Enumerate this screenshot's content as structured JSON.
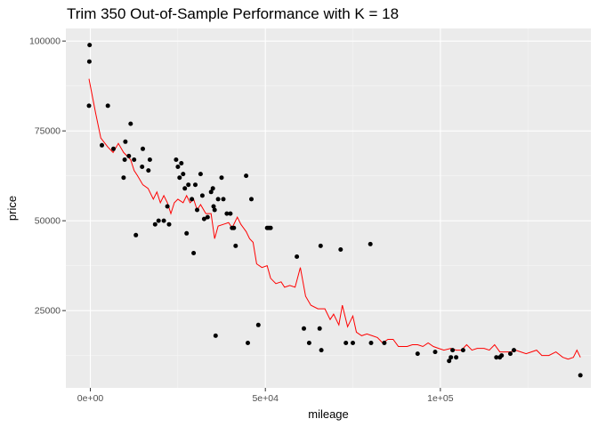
{
  "chart_data": {
    "type": "scatter",
    "title": "Trim 350 Out-of-Sample Performance with K = 18",
    "xlabel": "mileage",
    "ylabel": "price",
    "xlim": [
      -7000,
      143000
    ],
    "ylim": [
      3500,
      103500
    ],
    "x_ticks": [
      {
        "value": 0,
        "label": "0e+00"
      },
      {
        "value": 50000,
        "label": "5e+04"
      },
      {
        "value": 100000,
        "label": "1e+05"
      }
    ],
    "y_ticks": [
      {
        "value": 25000,
        "label": "25000"
      },
      {
        "value": 50000,
        "label": "50000"
      },
      {
        "value": 75000,
        "label": "75000"
      },
      {
        "value": 100000,
        "label": "100000"
      }
    ],
    "grid": true,
    "background": "#ebebeb",
    "point_color": "#000000",
    "line_color": "#ff0000",
    "points": [
      [
        -200,
        98900
      ],
      [
        -300,
        94300
      ],
      [
        -400,
        82000
      ],
      [
        3300,
        71000
      ],
      [
        5000,
        82000
      ],
      [
        6600,
        70000
      ],
      [
        9500,
        62000
      ],
      [
        9800,
        67000
      ],
      [
        10000,
        72000
      ],
      [
        11000,
        68000
      ],
      [
        11500,
        77000
      ],
      [
        12500,
        67000
      ],
      [
        13000,
        46000
      ],
      [
        14800,
        65000
      ],
      [
        15000,
        70000
      ],
      [
        16600,
        64000
      ],
      [
        17000,
        67000
      ],
      [
        18500,
        49000
      ],
      [
        19500,
        50000
      ],
      [
        21000,
        50000
      ],
      [
        22000,
        54000
      ],
      [
        22500,
        49000
      ],
      [
        24500,
        67000
      ],
      [
        25000,
        65000
      ],
      [
        25500,
        62000
      ],
      [
        26000,
        66000
      ],
      [
        26500,
        63000
      ],
      [
        27000,
        59000
      ],
      [
        27500,
        46500
      ],
      [
        28000,
        60000
      ],
      [
        29000,
        56000
      ],
      [
        29500,
        41000
      ],
      [
        30000,
        60000
      ],
      [
        30500,
        53000
      ],
      [
        31500,
        63000
      ],
      [
        32000,
        57000
      ],
      [
        32500,
        50500
      ],
      [
        33500,
        51000
      ],
      [
        34500,
        58000
      ],
      [
        35000,
        59000
      ],
      [
        35200,
        54000
      ],
      [
        35500,
        53000
      ],
      [
        35800,
        18000
      ],
      [
        36500,
        56000
      ],
      [
        37500,
        62000
      ],
      [
        38000,
        56000
      ],
      [
        39000,
        52000
      ],
      [
        40000,
        52000
      ],
      [
        40500,
        48000
      ],
      [
        41000,
        48000
      ],
      [
        41500,
        43000
      ],
      [
        44500,
        62500
      ],
      [
        45000,
        16000
      ],
      [
        46000,
        56000
      ],
      [
        48000,
        21000
      ],
      [
        50500,
        48000
      ],
      [
        51000,
        48000
      ],
      [
        51500,
        48000
      ],
      [
        59000,
        40000
      ],
      [
        61000,
        20000
      ],
      [
        62500,
        16000
      ],
      [
        65500,
        20000
      ],
      [
        65800,
        43000
      ],
      [
        66000,
        14000
      ],
      [
        71500,
        42000
      ],
      [
        73000,
        16000
      ],
      [
        75000,
        16000
      ],
      [
        80000,
        43500
      ],
      [
        80200,
        16000
      ],
      [
        84000,
        16000
      ],
      [
        93500,
        13000
      ],
      [
        98500,
        13500
      ],
      [
        102500,
        11000
      ],
      [
        103000,
        12000
      ],
      [
        103500,
        14000
      ],
      [
        104500,
        12000
      ],
      [
        106500,
        14000
      ],
      [
        116000,
        12000
      ],
      [
        117000,
        12000
      ],
      [
        117500,
        12500
      ],
      [
        120000,
        13000
      ],
      [
        121000,
        14000
      ],
      [
        140000,
        7000
      ]
    ],
    "fit_line": [
      [
        -400,
        89500
      ],
      [
        1500,
        80000
      ],
      [
        3000,
        73000
      ],
      [
        5000,
        70500
      ],
      [
        6500,
        69000
      ],
      [
        8000,
        71500
      ],
      [
        9500,
        69000
      ],
      [
        10500,
        68000
      ],
      [
        11500,
        67000
      ],
      [
        12500,
        64000
      ],
      [
        13500,
        62500
      ],
      [
        15000,
        60000
      ],
      [
        16500,
        59000
      ],
      [
        18000,
        56000
      ],
      [
        19000,
        58000
      ],
      [
        20000,
        55000
      ],
      [
        21000,
        57000
      ],
      [
        22000,
        55000
      ],
      [
        23000,
        52000
      ],
      [
        24000,
        55000
      ],
      [
        25000,
        56000
      ],
      [
        26500,
        55000
      ],
      [
        27500,
        57000
      ],
      [
        28500,
        55000
      ],
      [
        29500,
        56000
      ],
      [
        30500,
        53000
      ],
      [
        31500,
        54500
      ],
      [
        33000,
        52000
      ],
      [
        34500,
        52000
      ],
      [
        35500,
        45000
      ],
      [
        36500,
        48500
      ],
      [
        38000,
        49000
      ],
      [
        39500,
        49500
      ],
      [
        40500,
        48000
      ],
      [
        42000,
        51000
      ],
      [
        43000,
        49000
      ],
      [
        44500,
        47000
      ],
      [
        45500,
        45000
      ],
      [
        46500,
        44000
      ],
      [
        47500,
        38000
      ],
      [
        49000,
        37000
      ],
      [
        50500,
        37500
      ],
      [
        51500,
        34000
      ],
      [
        53000,
        32500
      ],
      [
        54500,
        33000
      ],
      [
        55500,
        31500
      ],
      [
        57000,
        32000
      ],
      [
        58500,
        31500
      ],
      [
        60000,
        37000
      ],
      [
        61500,
        29000
      ],
      [
        63000,
        26500
      ],
      [
        65000,
        25500
      ],
      [
        67000,
        25500
      ],
      [
        68500,
        22500
      ],
      [
        69500,
        24000
      ],
      [
        71000,
        21000
      ],
      [
        72000,
        26500
      ],
      [
        73500,
        20500
      ],
      [
        75000,
        23500
      ],
      [
        76000,
        19000
      ],
      [
        77500,
        18000
      ],
      [
        79000,
        18500
      ],
      [
        80500,
        18000
      ],
      [
        82000,
        17500
      ],
      [
        83500,
        16000
      ],
      [
        85000,
        17000
      ],
      [
        86500,
        17000
      ],
      [
        88000,
        15000
      ],
      [
        90500,
        15000
      ],
      [
        92000,
        15500
      ],
      [
        93500,
        15500
      ],
      [
        95000,
        15000
      ],
      [
        96500,
        16000
      ],
      [
        98000,
        15000
      ],
      [
        99500,
        14500
      ],
      [
        101000,
        14000
      ],
      [
        103000,
        14500
      ],
      [
        104500,
        14000
      ],
      [
        106000,
        14000
      ],
      [
        107500,
        15500
      ],
      [
        109000,
        14000
      ],
      [
        110500,
        14500
      ],
      [
        112500,
        14500
      ],
      [
        114000,
        14000
      ],
      [
        115500,
        15500
      ],
      [
        117000,
        13500
      ],
      [
        118500,
        13500
      ],
      [
        120000,
        13500
      ],
      [
        121500,
        14000
      ],
      [
        123000,
        13500
      ],
      [
        124500,
        13000
      ],
      [
        126000,
        13500
      ],
      [
        127500,
        14000
      ],
      [
        129000,
        12500
      ],
      [
        131000,
        12500
      ],
      [
        133000,
        13500
      ],
      [
        135000,
        12000
      ],
      [
        136500,
        11500
      ],
      [
        138000,
        12000
      ],
      [
        139000,
        14000
      ],
      [
        140000,
        12000
      ]
    ]
  }
}
